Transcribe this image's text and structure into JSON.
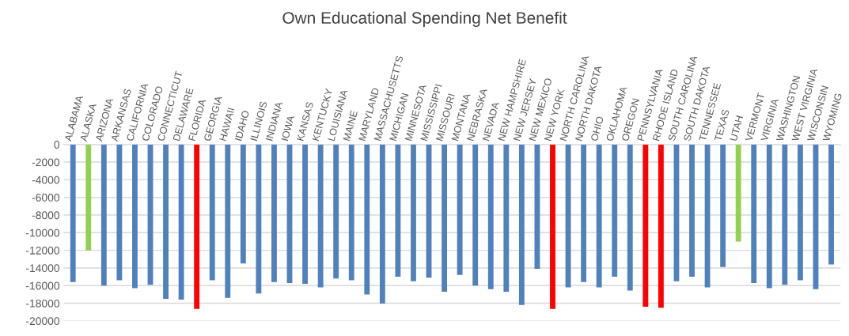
{
  "chart_data": {
    "type": "bar",
    "title": "Own Educational Spending Net Benefit",
    "categories": [
      "ALABAMA",
      "ALASKA",
      "ARIZONA",
      "ARKANSAS",
      "CALIFORNIA",
      "COLORADO",
      "CONNECTICUT",
      "DELAWARE",
      "FLORIDA",
      "GEORGIA",
      "HAWAII",
      "IDAHO",
      "ILLINOIS",
      "INDIANA",
      "IOWA",
      "KANSAS",
      "KENTUCKY",
      "LOUISIANA",
      "MAINE",
      "MARYLAND",
      "MASSACHUSETTS",
      "MICHIGAN",
      "MINNESOTA",
      "MISSISSIPPI",
      "MISSOURI",
      "MONTANA",
      "NEBRASKA",
      "NEVADA",
      "NEW HAMPSHIRE",
      "NEW JERSEY",
      "NEW MEXICO",
      "NEW YORK",
      "NORTH CAROLINA",
      "NORTH DAKOTA",
      "OHIO",
      "OKLAHOMA",
      "OREGON",
      "PENNSYLVANIA",
      "RHODE ISLAND",
      "SOUTH CAROLINA",
      "SOUTH DAKOTA",
      "TENNESSEE",
      "TEXAS",
      "UTAH",
      "VERMONT",
      "VIRGINIA",
      "WASHINGTON",
      "WEST VIRGINIA",
      "WISCONSIN",
      "WYOMING"
    ],
    "values": [
      -15600,
      -12000,
      -16000,
      -15400,
      -16300,
      -15900,
      -17500,
      -17600,
      -18650,
      -15400,
      -17400,
      -13500,
      -16900,
      -15600,
      -15700,
      -15800,
      -16200,
      -15200,
      -15400,
      -17000,
      -18050,
      -15000,
      -15500,
      -15100,
      -16700,
      -14800,
      -16000,
      -16400,
      -16700,
      -18200,
      -14100,
      -18650,
      -16200,
      -15600,
      -16200,
      -15000,
      -16550,
      -18400,
      -18500,
      -15500,
      -15000,
      -16200,
      -13900,
      -11000,
      -15700,
      -16300,
      -15900,
      -15400,
      -16400,
      -13600
    ],
    "colors": [
      "#4f81bd",
      "#92d050",
      "#4f81bd",
      "#4f81bd",
      "#4f81bd",
      "#4f81bd",
      "#4f81bd",
      "#4f81bd",
      "#ff0000",
      "#4f81bd",
      "#4f81bd",
      "#4f81bd",
      "#4f81bd",
      "#4f81bd",
      "#4f81bd",
      "#4f81bd",
      "#4f81bd",
      "#4f81bd",
      "#4f81bd",
      "#4f81bd",
      "#4f81bd",
      "#4f81bd",
      "#4f81bd",
      "#4f81bd",
      "#4f81bd",
      "#4f81bd",
      "#4f81bd",
      "#4f81bd",
      "#4f81bd",
      "#4f81bd",
      "#4f81bd",
      "#ff0000",
      "#4f81bd",
      "#4f81bd",
      "#4f81bd",
      "#4f81bd",
      "#4f81bd",
      "#ff0000",
      "#ff0000",
      "#4f81bd",
      "#4f81bd",
      "#4f81bd",
      "#4f81bd",
      "#92d050",
      "#4f81bd",
      "#4f81bd",
      "#4f81bd",
      "#4f81bd",
      "#4f81bd",
      "#4f81bd"
    ],
    "ylim": [
      -20000,
      0
    ],
    "yticks": [
      0,
      -2000,
      -4000,
      -6000,
      -8000,
      -10000,
      -12000,
      -14000,
      -16000,
      -18000,
      -20000
    ],
    "grid": "y",
    "legend": false
  }
}
